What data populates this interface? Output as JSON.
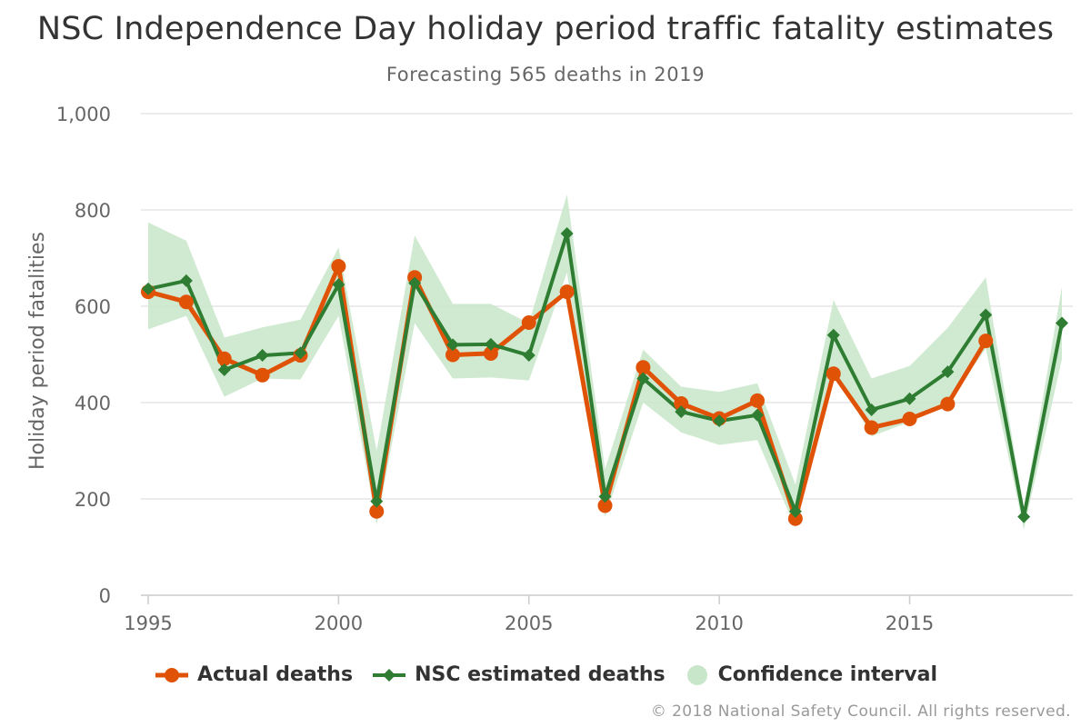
{
  "chart_data": {
    "type": "line",
    "title": "NSC Independence Day holiday period traffic fatality estimates",
    "subtitle": "Forecasting 565 deaths in 2019",
    "xlabel": "",
    "ylabel": "Holiday period fatalities",
    "xlim": [
      1995,
      2019
    ],
    "ylim": [
      0,
      1000
    ],
    "x_ticks": [
      "1995",
      "2000",
      "2005",
      "2010",
      "2015"
    ],
    "y_ticks": [
      "0",
      "200",
      "400",
      "600",
      "800",
      "1,000"
    ],
    "x": [
      1995,
      1996,
      1997,
      1998,
      1999,
      2000,
      2001,
      2002,
      2003,
      2004,
      2005,
      2006,
      2007,
      2008,
      2009,
      2010,
      2011,
      2012,
      2013,
      2014,
      2015,
      2016,
      2017,
      2018,
      2019
    ],
    "series": [
      {
        "name": "Actual deaths",
        "color": "#e05206",
        "marker": "circle",
        "values": [
          630,
          609,
          491,
          457,
          498,
          683,
          174,
          660,
          499,
          502,
          566,
          630,
          186,
          473,
          398,
          367,
          404,
          159,
          460,
          348,
          366,
          397,
          528,
          null,
          null
        ]
      },
      {
        "name": "NSC estimated deaths",
        "color": "#2e7d32",
        "marker": "diamond",
        "values": [
          636,
          653,
          468,
          498,
          503,
          645,
          195,
          648,
          520,
          521,
          498,
          751,
          205,
          450,
          381,
          362,
          374,
          174,
          540,
          385,
          408,
          464,
          582,
          163,
          565
        ]
      }
    ],
    "confidence_interval": {
      "name": "Confidence interval",
      "color": "#c8e6c9",
      "low": [
        552,
        580,
        412,
        450,
        448,
        580,
        146,
        565,
        450,
        452,
        446,
        670,
        162,
        400,
        338,
        312,
        322,
        140,
        470,
        330,
        360,
        400,
        512,
        136,
        490
      ],
      "high": [
        774,
        736,
        535,
        556,
        572,
        722,
        300,
        747,
        605,
        605,
        565,
        832,
        262,
        510,
        433,
        422,
        440,
        230,
        613,
        450,
        476,
        555,
        660,
        180,
        640
      ]
    },
    "legend": [
      "Actual deaths",
      "NSC estimated deaths",
      "Confidence interval"
    ],
    "legend_position": "bottom",
    "grid": true,
    "credits": "© 2018 National Safety Council. All rights reserved."
  }
}
